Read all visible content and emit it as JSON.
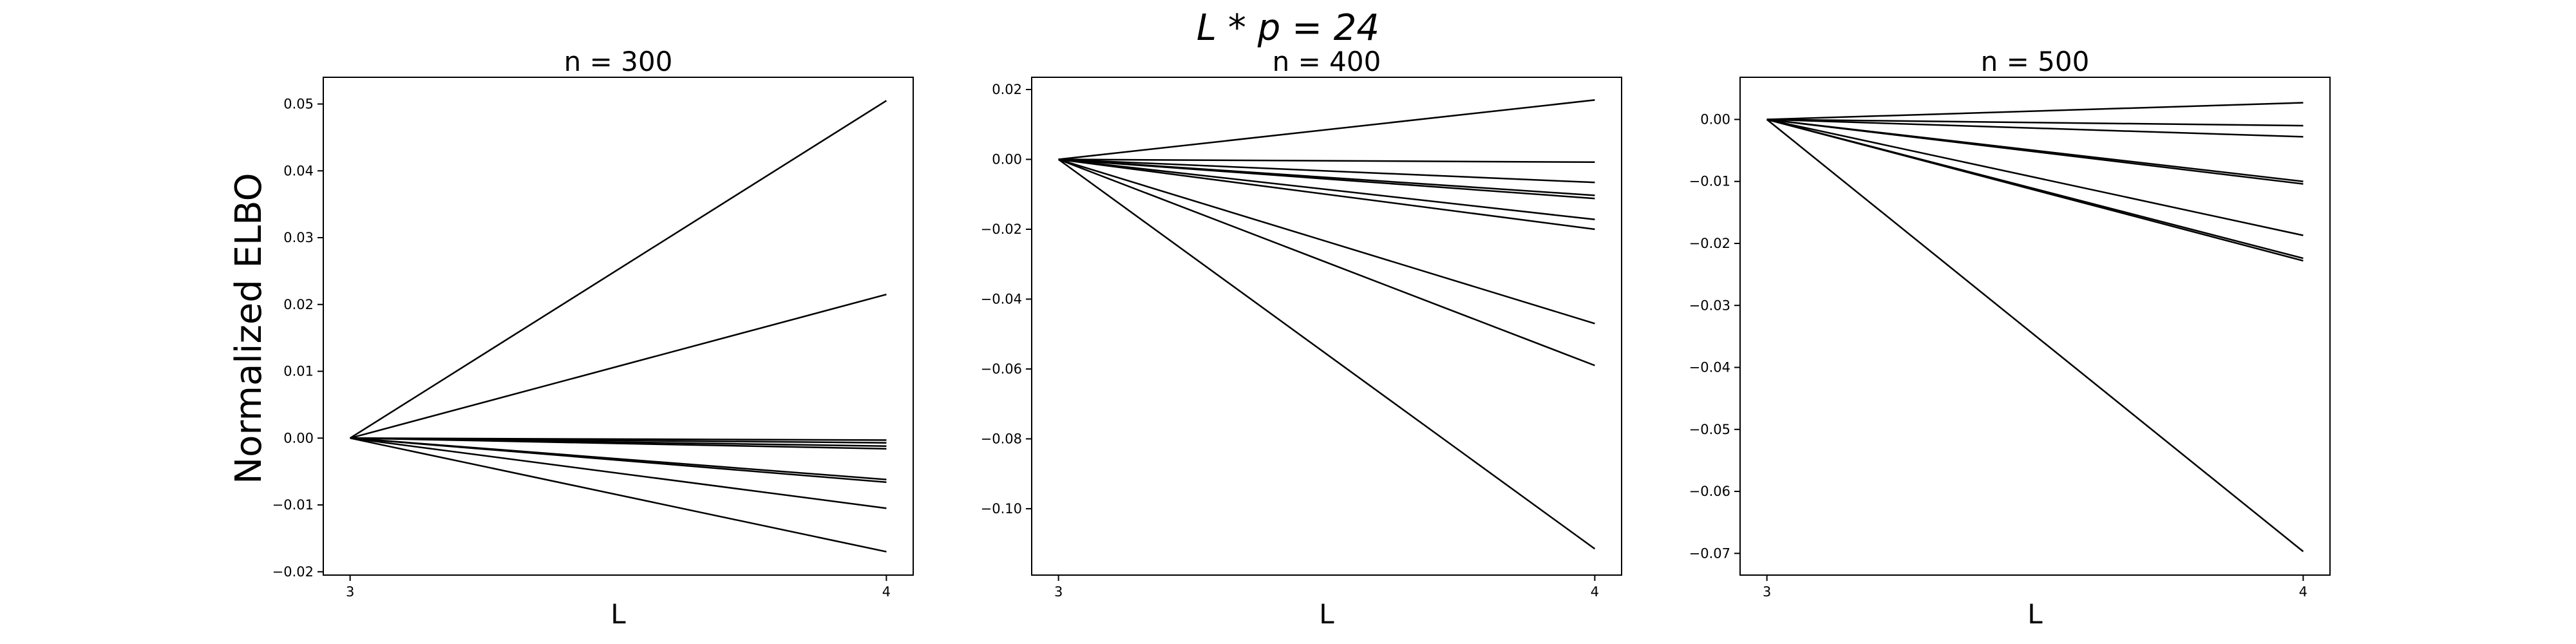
{
  "figure": {
    "title": "L * p = 24",
    "ylabel": "Normalized ELBO"
  },
  "chart_data": [
    {
      "type": "line",
      "title": "n = 300",
      "xlabel": "L",
      "ylabel": "Normalized ELBO",
      "x": [
        3,
        4
      ],
      "xlim": [
        2.95,
        4.05
      ],
      "ylim": [
        -0.0205,
        0.054
      ],
      "xticks": [
        3,
        4
      ],
      "xtick_labels": [
        "3",
        "4"
      ],
      "yticks": [
        -0.02,
        -0.01,
        0.0,
        0.01,
        0.02,
        0.03,
        0.04,
        0.05
      ],
      "ytick_labels": [
        "−0.02",
        "−0.01",
        "0.00",
        "0.01",
        "0.02",
        "0.03",
        "0.04",
        "0.05"
      ],
      "color": "#000000",
      "series": [
        {
          "values": [
            0,
            0.0505
          ]
        },
        {
          "values": [
            0,
            0.0215
          ]
        },
        {
          "values": [
            0,
            -0.0003
          ]
        },
        {
          "values": [
            0,
            -0.0007
          ]
        },
        {
          "values": [
            0,
            -0.0012
          ]
        },
        {
          "values": [
            0,
            -0.0016
          ]
        },
        {
          "values": [
            0,
            -0.0062
          ]
        },
        {
          "values": [
            0,
            -0.0066
          ]
        },
        {
          "values": [
            0,
            -0.0105
          ]
        },
        {
          "values": [
            0,
            -0.017
          ]
        }
      ]
    },
    {
      "type": "line",
      "title": "n = 400",
      "xlabel": "L",
      "ylabel": "",
      "x": [
        3,
        4
      ],
      "xlim": [
        2.95,
        4.05
      ],
      "ylim": [
        -0.119,
        0.0235
      ],
      "xticks": [
        3,
        4
      ],
      "xtick_labels": [
        "3",
        "4"
      ],
      "yticks": [
        -0.1,
        -0.08,
        -0.06,
        -0.04,
        -0.02,
        0.0,
        0.02
      ],
      "ytick_labels": [
        "−0.10",
        "−0.08",
        "−0.06",
        "−0.04",
        "−0.02",
        "0.00",
        "0.02"
      ],
      "color": "#000000",
      "series": [
        {
          "values": [
            0,
            0.017
          ]
        },
        {
          "values": [
            0,
            -0.0008
          ]
        },
        {
          "values": [
            0,
            -0.0066
          ]
        },
        {
          "values": [
            0,
            -0.0103
          ]
        },
        {
          "values": [
            0,
            -0.0112
          ]
        },
        {
          "values": [
            0,
            -0.0172
          ]
        },
        {
          "values": [
            0,
            -0.02
          ]
        },
        {
          "values": [
            0,
            -0.047
          ]
        },
        {
          "values": [
            0,
            -0.059
          ]
        },
        {
          "values": [
            0,
            -0.1115
          ]
        }
      ]
    },
    {
      "type": "line",
      "title": "n = 500",
      "xlabel": "L",
      "ylabel": "",
      "x": [
        3,
        4
      ],
      "xlim": [
        2.95,
        4.05
      ],
      "ylim": [
        -0.0735,
        0.0068
      ],
      "xticks": [
        3,
        4
      ],
      "xtick_labels": [
        "3",
        "4"
      ],
      "yticks": [
        -0.07,
        -0.06,
        -0.05,
        -0.04,
        -0.03,
        -0.02,
        -0.01,
        0.0
      ],
      "ytick_labels": [
        "−0.07",
        "−0.06",
        "−0.05",
        "−0.04",
        "−0.03",
        "−0.02",
        "−0.01",
        "0.00"
      ],
      "color": "#000000",
      "series": [
        {
          "values": [
            0,
            0.0027
          ]
        },
        {
          "values": [
            0,
            -0.001
          ]
        },
        {
          "values": [
            0,
            -0.0028
          ]
        },
        {
          "values": [
            0,
            -0.01
          ]
        },
        {
          "values": [
            0,
            -0.0104
          ]
        },
        {
          "values": [
            0,
            -0.0187
          ]
        },
        {
          "values": [
            0,
            -0.0224
          ]
        },
        {
          "values": [
            0,
            -0.0228
          ]
        },
        {
          "values": [
            0,
            -0.0697
          ]
        }
      ]
    }
  ]
}
